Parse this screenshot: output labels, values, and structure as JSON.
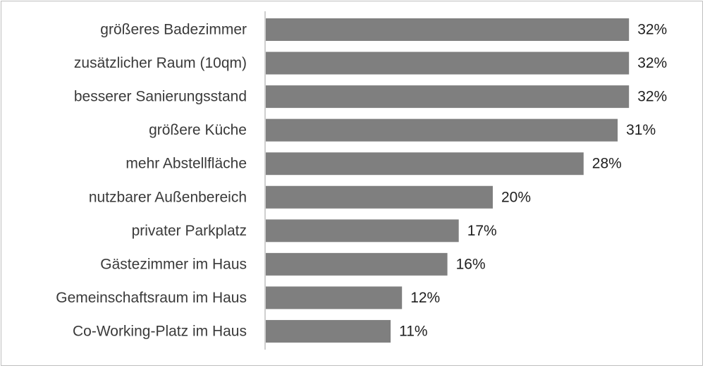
{
  "chart_data": {
    "type": "bar",
    "orientation": "horizontal",
    "categories": [
      "größeres Badezimmer",
      "zusätzlicher Raum (10qm)",
      "besserer Sanierungsstand",
      "größere Küche",
      "mehr Abstellfläche",
      "nutzbarer Außenbereich",
      "privater Parkplatz",
      "Gästezimmer im Haus",
      "Gemeinschaftsraum im Haus",
      "Co-Working-Platz im Haus"
    ],
    "values": [
      32,
      32,
      32,
      31,
      28,
      20,
      17,
      16,
      12,
      11
    ],
    "value_labels": [
      "32%",
      "32%",
      "32%",
      "31%",
      "28%",
      "20%",
      "17%",
      "16%",
      "12%",
      "11%"
    ],
    "unit": "%",
    "xlim": [
      0,
      35
    ],
    "bar_color": "#7f7f7f",
    "axis_color": "#bfbfbf",
    "grid": false,
    "legend": "none"
  }
}
